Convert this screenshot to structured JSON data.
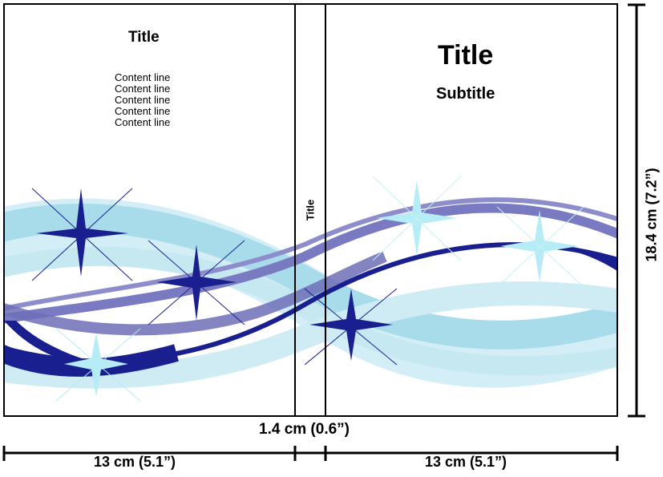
{
  "cover": {
    "back": {
      "title": "Title",
      "content_lines": [
        "Content line",
        "Content line",
        "Content line",
        "Content line",
        "Content line"
      ]
    },
    "spine": {
      "title": "Title"
    },
    "front": {
      "title": "Title",
      "subtitle": "Subtitle"
    }
  },
  "dimensions": {
    "spine_width": "1.4 cm (0.6”)",
    "back_width": "13 cm (5.1”)",
    "front_width": "13 cm (5.1”)",
    "height": "18.4 cm (7.2”)"
  },
  "colors": {
    "light_blue": "#a8dcea",
    "pale_blue": "#d3eef6",
    "purple": "#6e6eb8",
    "navy": "#1a1f8f",
    "cyan_star": "#b6ecf6"
  }
}
